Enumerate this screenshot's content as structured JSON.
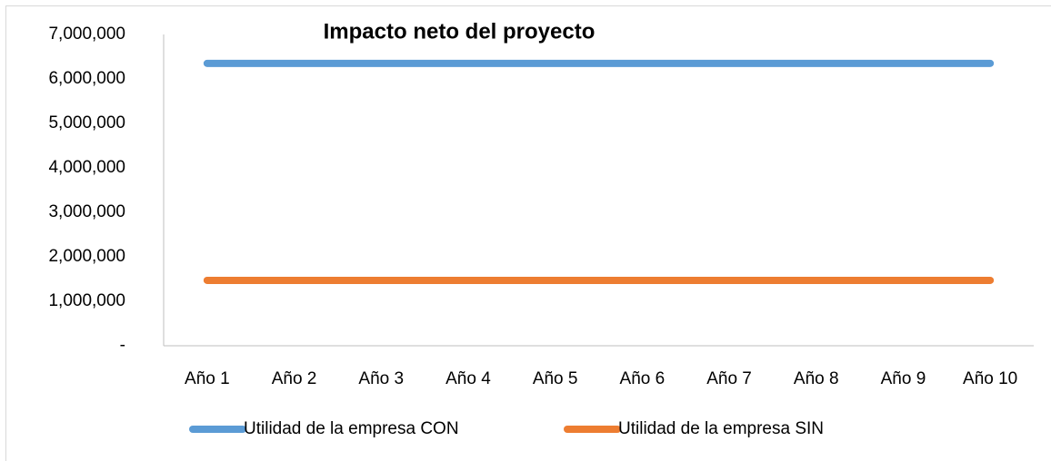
{
  "chart_data": {
    "type": "line",
    "title": "Impacto neto del proyecto",
    "categories": [
      "Año 1",
      "Año 2",
      "Año 3",
      "Año 4",
      "Año 5",
      "Año 6",
      "Año 7",
      "Año 8",
      "Año 9",
      "Año 10"
    ],
    "series": [
      {
        "name": "Utilidad de la empresa CON",
        "color": "#5b9bd5",
        "values": [
          6350000,
          6350000,
          6350000,
          6350000,
          6350000,
          6350000,
          6350000,
          6350000,
          6350000,
          6350000
        ]
      },
      {
        "name": "Utilidad de la empresa SIN",
        "color": "#ed7d31",
        "values": [
          1470000,
          1470000,
          1470000,
          1470000,
          1470000,
          1470000,
          1470000,
          1470000,
          1470000,
          1470000
        ]
      }
    ],
    "ylim": [
      0,
      7000000
    ],
    "yticks": [
      {
        "value": 0,
        "label": "-"
      },
      {
        "value": 1000000,
        "label": "1,000,000"
      },
      {
        "value": 2000000,
        "label": "2,000,000"
      },
      {
        "value": 3000000,
        "label": "3,000,000"
      },
      {
        "value": 4000000,
        "label": "4,000,000"
      },
      {
        "value": 5000000,
        "label": "5,000,000"
      },
      {
        "value": 6000000,
        "label": "6,000,000"
      },
      {
        "value": 7000000,
        "label": "7,000,000"
      }
    ],
    "grid": false,
    "legend": "bottom"
  }
}
